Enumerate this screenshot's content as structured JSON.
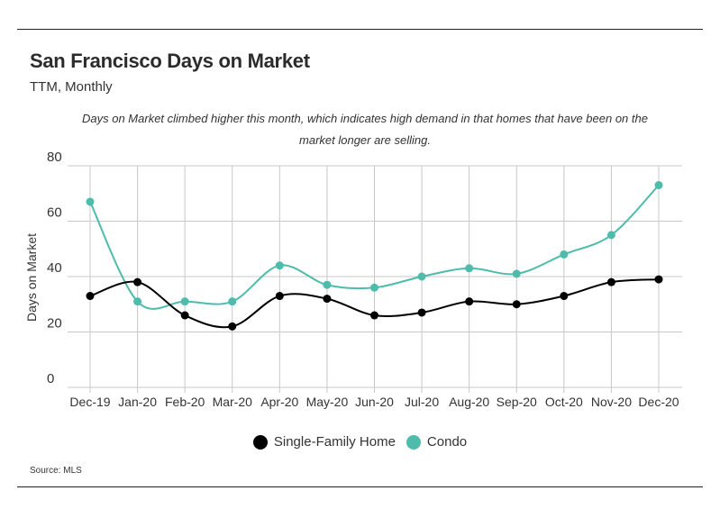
{
  "header": {
    "title": "San Francisco Days on Market",
    "subtitle": "TTM, Monthly",
    "annotation": "Days on Market climbed higher this month, which indicates high demand in that homes that have been on the market longer are selling."
  },
  "source": "Source:  MLS",
  "colors": {
    "single_family": "#000000",
    "condo": "#4dbcaa",
    "grid": "#c8c8c8"
  },
  "chart_data": {
    "type": "line",
    "title": "San Francisco Days on Market",
    "subtitle": "TTM, Monthly",
    "ylabel": "Days on Market",
    "xlabel": "",
    "ylim": [
      0,
      80
    ],
    "yticks": [
      0,
      20,
      40,
      60,
      80
    ],
    "grid": true,
    "legend_position": "bottom",
    "categories": [
      "Dec-19",
      "Jan-20",
      "Feb-20",
      "Mar-20",
      "Apr-20",
      "May-20",
      "Jun-20",
      "Jul-20",
      "Aug-20",
      "Sep-20",
      "Oct-20",
      "Nov-20",
      "Dec-20"
    ],
    "series": [
      {
        "name": "Single-Family Home",
        "color": "#000000",
        "values": [
          33,
          38,
          26,
          22,
          33,
          32,
          26,
          27,
          31,
          30,
          33,
          38,
          39
        ]
      },
      {
        "name": "Condo",
        "color": "#4dbcaa",
        "values": [
          67,
          31,
          31,
          31,
          44,
          37,
          36,
          40,
          43,
          41,
          48,
          55,
          73
        ]
      }
    ]
  }
}
